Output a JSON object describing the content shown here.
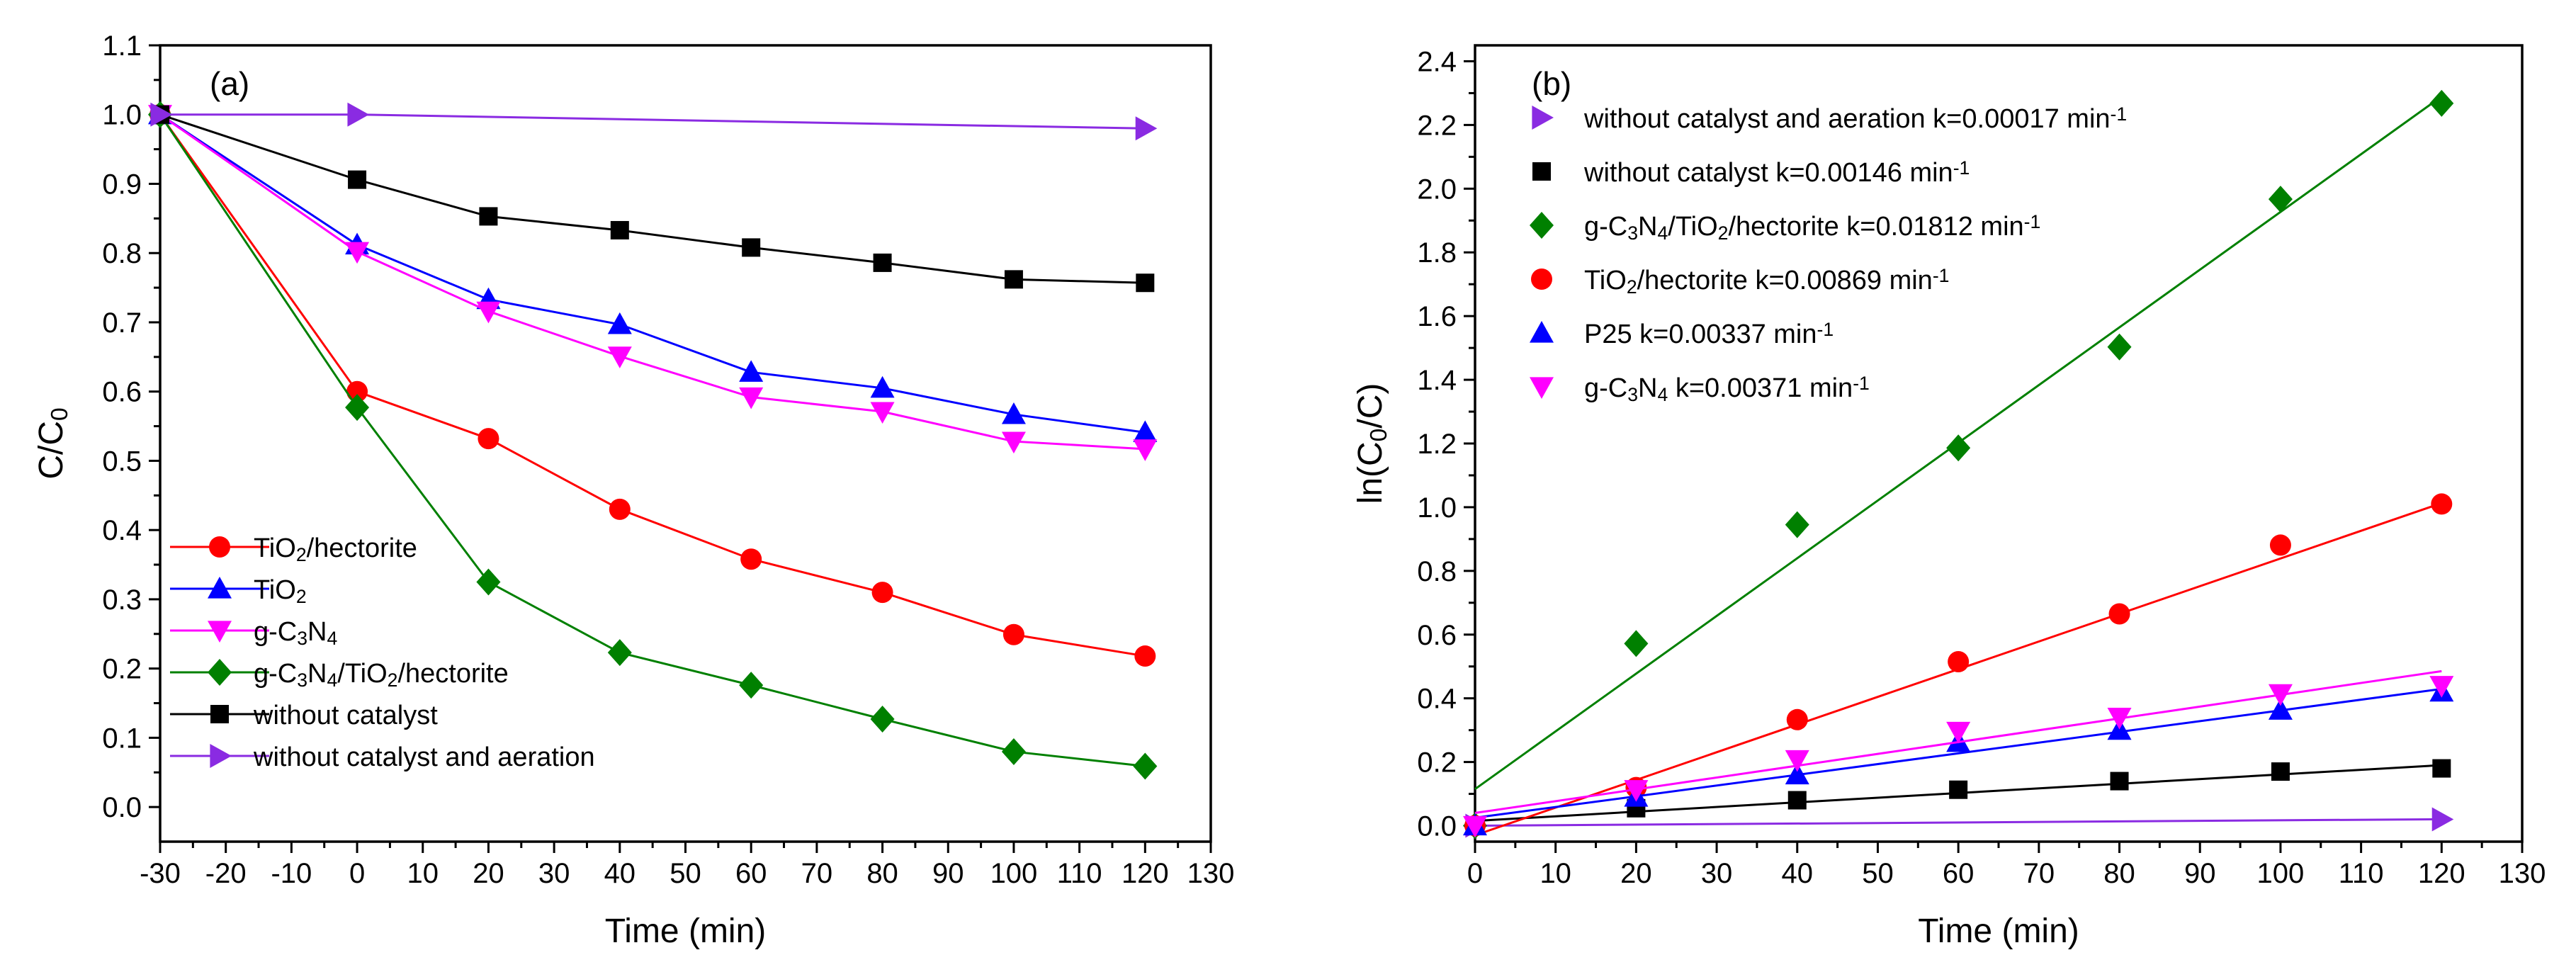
{
  "chart_data": [
    {
      "type": "line",
      "panel_label": "(a)",
      "xlabel": "Time (min)",
      "ylabel": "C/C0",
      "ylabel_main": "C/C",
      "ylabel_sub": "0",
      "xlim": [
        -30,
        130
      ],
      "ylim": [
        -0.05,
        1.1
      ],
      "xticks": [
        -30,
        -20,
        -10,
        0,
        10,
        20,
        30,
        40,
        50,
        60,
        70,
        80,
        90,
        100,
        110,
        120,
        130
      ],
      "yticks": [
        0.0,
        0.1,
        0.2,
        0.3,
        0.4,
        0.5,
        0.6,
        0.7,
        0.8,
        0.9,
        1.0,
        1.1
      ],
      "legend_position": "bottom-left",
      "series": [
        {
          "name": "TiO2/hectorite",
          "legend_parts": [
            [
              "TiO",
              ""
            ],
            [
              "2",
              "sub"
            ],
            [
              "/hectorite",
              ""
            ]
          ],
          "color": "#ff0000",
          "marker": "circle",
          "x": [
            -30,
            0,
            20,
            40,
            60,
            80,
            100,
            120
          ],
          "y": [
            1.0,
            0.6,
            0.532,
            0.43,
            0.358,
            0.31,
            0.249,
            0.218
          ]
        },
        {
          "name": "TiO2",
          "legend_parts": [
            [
              "TiO",
              ""
            ],
            [
              "2",
              "sub"
            ]
          ],
          "color": "#0000ff",
          "marker": "triangle-up",
          "x": [
            -30,
            0,
            20,
            40,
            60,
            80,
            100,
            120
          ],
          "y": [
            1.0,
            0.812,
            0.733,
            0.697,
            0.628,
            0.605,
            0.567,
            0.541
          ]
        },
        {
          "name": "g-C3N4",
          "legend_parts": [
            [
              "g-C",
              ""
            ],
            [
              "3",
              "sub"
            ],
            [
              "N",
              ""
            ],
            [
              "4",
              "sub"
            ]
          ],
          "color": "#ff00ff",
          "marker": "triangle-down",
          "x": [
            -30,
            0,
            20,
            40,
            60,
            80,
            100,
            120
          ],
          "y": [
            1.0,
            0.802,
            0.716,
            0.651,
            0.592,
            0.571,
            0.528,
            0.517
          ]
        },
        {
          "name": "g-C3N4/TiO2/hectorite",
          "legend_parts": [
            [
              "g-C",
              ""
            ],
            [
              "3",
              "sub"
            ],
            [
              "N",
              ""
            ],
            [
              "4",
              "sub"
            ],
            [
              "/TiO",
              ""
            ],
            [
              "2",
              "sub"
            ],
            [
              "/hectorite",
              ""
            ]
          ],
          "color": "#008000",
          "marker": "diamond",
          "x": [
            -30,
            0,
            20,
            40,
            60,
            80,
            100,
            120
          ],
          "y": [
            1.0,
            0.577,
            0.325,
            0.223,
            0.176,
            0.127,
            0.08,
            0.059
          ]
        },
        {
          "name": "without catalyst",
          "legend_parts": [
            [
              "without catalyst",
              ""
            ]
          ],
          "color": "#000000",
          "marker": "square",
          "x": [
            -30,
            0,
            20,
            40,
            60,
            80,
            100,
            120
          ],
          "y": [
            1.0,
            0.906,
            0.853,
            0.833,
            0.808,
            0.786,
            0.762,
            0.757
          ]
        },
        {
          "name": "without catalyst and aeration",
          "legend_parts": [
            [
              "without catalyst and aeration",
              ""
            ]
          ],
          "color": "#8a2be2",
          "marker": "triangle-right",
          "x": [
            -30,
            0,
            120
          ],
          "y": [
            1.0,
            1.0,
            0.98
          ]
        }
      ]
    },
    {
      "type": "scatter",
      "panel_label": "(b)",
      "xlabel": "Time (min)",
      "ylabel": "ln(C0/C)",
      "ylabel_parts": [
        [
          "ln(C",
          ""
        ],
        [
          "0",
          "sub"
        ],
        [
          "/C)",
          ""
        ]
      ],
      "xlim": [
        0,
        130
      ],
      "ylim": [
        -0.05,
        2.45
      ],
      "xticks": [
        0,
        10,
        20,
        30,
        40,
        50,
        60,
        70,
        80,
        90,
        100,
        110,
        120,
        130
      ],
      "yticks": [
        0.0,
        0.2,
        0.4,
        0.6,
        0.8,
        1.0,
        1.2,
        1.4,
        1.6,
        1.8,
        2.0,
        2.2,
        2.4
      ],
      "legend_position": "top-left",
      "fit_lines": true,
      "series": [
        {
          "name": "without catalyst and aeration k=0.00017 min-1",
          "legend_parts": [
            [
              "without catalyst and aeration k=0.00017 min",
              ""
            ],
            [
              "-1",
              "sup"
            ]
          ],
          "color": "#8a2be2",
          "marker": "triangle-right",
          "x": [
            0,
            120
          ],
          "y": [
            0.0,
            0.02
          ],
          "fit": [
            0.0,
            0.00017
          ]
        },
        {
          "name": "without catalyst k=0.00146 min-1",
          "legend_parts": [
            [
              "without catalyst k=0.00146 min",
              ""
            ],
            [
              "-1",
              "sup"
            ]
          ],
          "color": "#000000",
          "marker": "square",
          "x": [
            0,
            20,
            40,
            60,
            80,
            100,
            120
          ],
          "y": [
            0.0,
            0.055,
            0.08,
            0.113,
            0.14,
            0.17,
            0.18
          ],
          "fit": [
            0.015,
            0.00146
          ]
        },
        {
          "name": "g-C3N4/TiO2/hectorite k=0.01812 min-1",
          "legend_parts": [
            [
              "g-C",
              ""
            ],
            [
              "3",
              "sub"
            ],
            [
              "N",
              ""
            ],
            [
              "4",
              "sub"
            ],
            [
              "/TiO",
              ""
            ],
            [
              "2",
              "sub"
            ],
            [
              "/hectorite k=0.01812 min",
              ""
            ],
            [
              "-1",
              "sup"
            ]
          ],
          "color": "#008000",
          "marker": "diamond",
          "x": [
            0,
            20,
            40,
            60,
            80,
            100,
            120
          ],
          "y": [
            0.0,
            0.572,
            0.945,
            1.186,
            1.503,
            1.967,
            2.268
          ],
          "fit": [
            0.115,
            0.01812
          ]
        },
        {
          "name": "TiO2/hectorite k=0.00869 min-1",
          "legend_parts": [
            [
              "TiO",
              ""
            ],
            [
              "2",
              "sub"
            ],
            [
              "/hectorite k=0.00869 min",
              ""
            ],
            [
              "-1",
              "sup"
            ]
          ],
          "color": "#ff0000",
          "marker": "circle",
          "x": [
            0,
            20,
            40,
            60,
            80,
            100,
            120
          ],
          "y": [
            0.0,
            0.12,
            0.333,
            0.515,
            0.665,
            0.881,
            1.01
          ],
          "fit": [
            -0.03,
            0.00869
          ]
        },
        {
          "name": "P25 k=0.00337 min-1",
          "legend_parts": [
            [
              "P25 k=0.00337 min",
              ""
            ],
            [
              "-1",
              "sup"
            ]
          ],
          "color": "#0000ff",
          "marker": "triangle-up",
          "x": [
            0,
            20,
            40,
            60,
            80,
            100,
            120
          ],
          "y": [
            0.0,
            0.09,
            0.16,
            0.262,
            0.3,
            0.363,
            0.42
          ],
          "fit": [
            0.025,
            0.00337
          ]
        },
        {
          "name": "g-C3N4 k=0.00371 min-1",
          "legend_parts": [
            [
              "g-C",
              ""
            ],
            [
              "3",
              "sub"
            ],
            [
              "N",
              ""
            ],
            [
              "4",
              "sub"
            ],
            [
              " k=0.00371 min",
              ""
            ],
            [
              "-1",
              "sup"
            ]
          ],
          "color": "#ff00ff",
          "marker": "triangle-down",
          "x": [
            0,
            20,
            40,
            60,
            80,
            100,
            120
          ],
          "y": [
            0.0,
            0.113,
            0.207,
            0.296,
            0.34,
            0.414,
            0.44
          ],
          "fit": [
            0.04,
            0.00371
          ]
        }
      ]
    }
  ]
}
